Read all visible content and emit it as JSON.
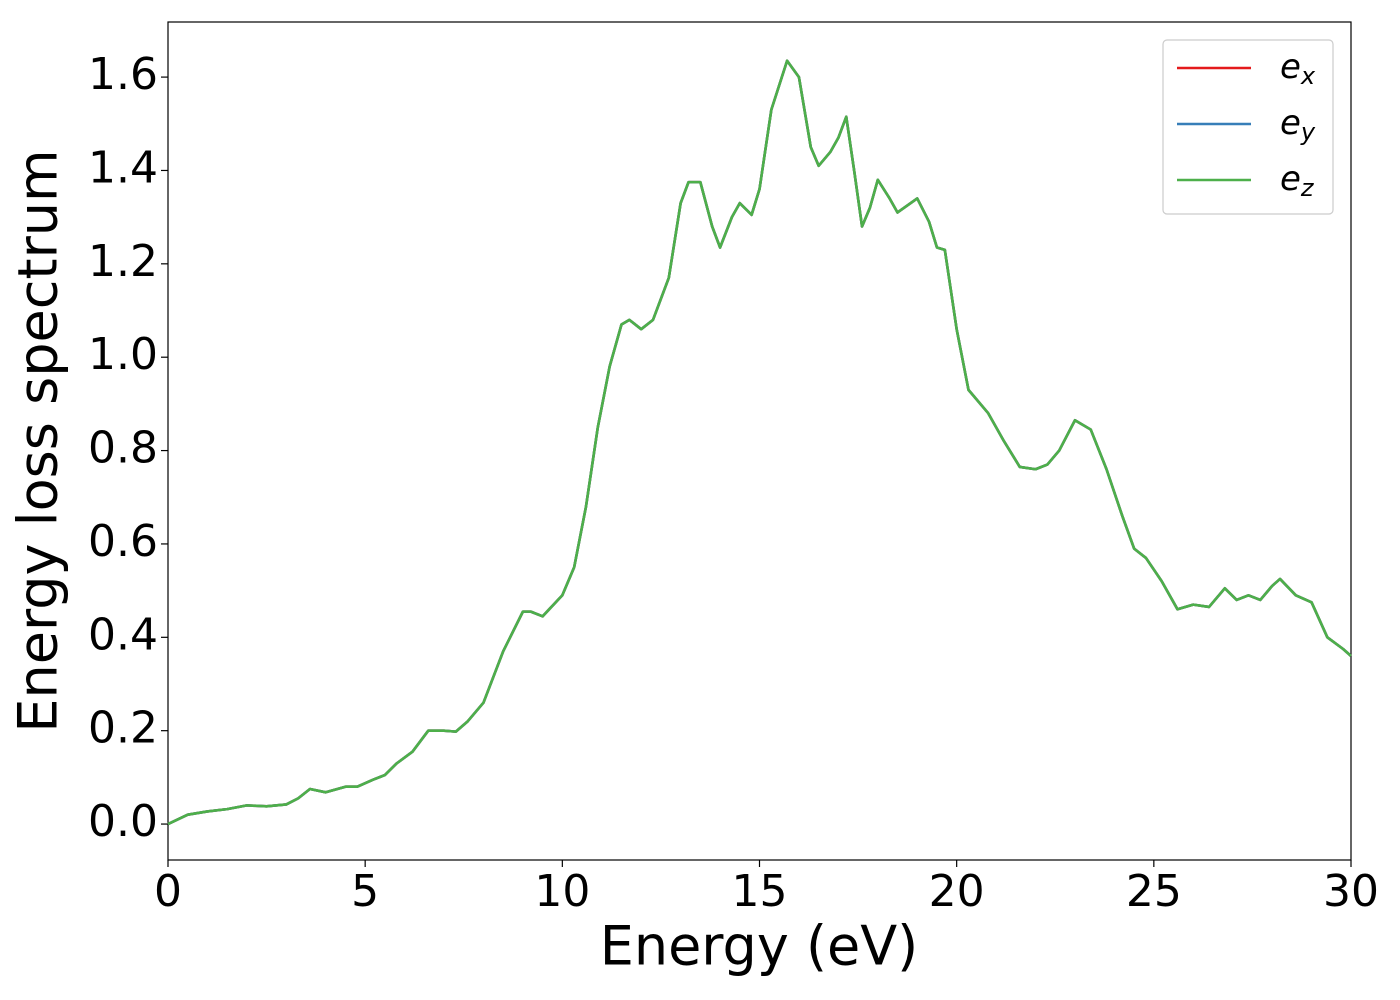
{
  "chart_data": {
    "type": "line",
    "xlabel": "Energy (eV)",
    "ylabel": "Energy loss spectrum",
    "x": [
      0,
      0.5,
      1,
      1.5,
      2,
      2.5,
      3,
      3.3,
      3.6,
      4,
      4.5,
      4.8,
      5.2,
      5.5,
      5.8,
      6.2,
      6.6,
      7,
      7.3,
      7.6,
      8,
      8.5,
      9,
      9.2,
      9.5,
      10,
      10.3,
      10.6,
      10.9,
      11.2,
      11.5,
      11.7,
      12,
      12.3,
      12.7,
      13,
      13.2,
      13.5,
      13.8,
      14,
      14.3,
      14.5,
      14.8,
      15,
      15.3,
      15.7,
      16,
      16.3,
      16.5,
      16.8,
      17,
      17.2,
      17.4,
      17.6,
      17.8,
      18,
      18.3,
      18.5,
      19,
      19.3,
      19.5,
      19.7,
      20,
      20.3,
      20.8,
      21.2,
      21.6,
      22,
      22.3,
      22.6,
      23,
      23.4,
      23.8,
      24.2,
      24.5,
      24.8,
      25.2,
      25.6,
      26,
      26.4,
      26.8,
      27.1,
      27.4,
      27.7,
      28,
      28.2,
      28.6,
      29,
      29.4,
      29.8,
      30
    ],
    "series": [
      {
        "name": "ex",
        "color": "#e41a1c",
        "values": [
          0,
          0.02,
          0.027,
          0.032,
          0.04,
          0.038,
          0.042,
          0.055,
          0.075,
          0.068,
          0.08,
          0.08,
          0.095,
          0.105,
          0.13,
          0.155,
          0.2,
          0.2,
          0.198,
          0.22,
          0.26,
          0.37,
          0.455,
          0.455,
          0.445,
          0.49,
          0.55,
          0.68,
          0.85,
          0.98,
          1.07,
          1.08,
          1.06,
          1.08,
          1.17,
          1.33,
          1.375,
          1.375,
          1.28,
          1.235,
          1.3,
          1.33,
          1.305,
          1.36,
          1.53,
          1.635,
          1.6,
          1.45,
          1.41,
          1.44,
          1.47,
          1.515,
          1.4,
          1.28,
          1.32,
          1.38,
          1.34,
          1.31,
          1.34,
          1.29,
          1.235,
          1.23,
          1.06,
          0.93,
          0.88,
          0.82,
          0.765,
          0.76,
          0.77,
          0.8,
          0.865,
          0.845,
          0.76,
          0.66,
          0.59,
          0.57,
          0.52,
          0.46,
          0.47,
          0.465,
          0.505,
          0.48,
          0.49,
          0.48,
          0.51,
          0.525,
          0.49,
          0.475,
          0.4,
          0.375,
          0.36
        ]
      },
      {
        "name": "ey",
        "color": "#377eb8",
        "values": [
          0,
          0.02,
          0.027,
          0.032,
          0.04,
          0.038,
          0.042,
          0.055,
          0.075,
          0.068,
          0.08,
          0.08,
          0.095,
          0.105,
          0.13,
          0.155,
          0.2,
          0.2,
          0.198,
          0.22,
          0.26,
          0.37,
          0.455,
          0.455,
          0.445,
          0.49,
          0.55,
          0.68,
          0.85,
          0.98,
          1.07,
          1.08,
          1.06,
          1.08,
          1.17,
          1.33,
          1.375,
          1.375,
          1.28,
          1.235,
          1.3,
          1.33,
          1.305,
          1.36,
          1.53,
          1.635,
          1.6,
          1.45,
          1.41,
          1.44,
          1.47,
          1.515,
          1.4,
          1.28,
          1.32,
          1.38,
          1.34,
          1.31,
          1.34,
          1.29,
          1.235,
          1.23,
          1.06,
          0.93,
          0.88,
          0.82,
          0.765,
          0.76,
          0.77,
          0.8,
          0.865,
          0.845,
          0.76,
          0.66,
          0.59,
          0.57,
          0.52,
          0.46,
          0.47,
          0.465,
          0.505,
          0.48,
          0.49,
          0.48,
          0.51,
          0.525,
          0.49,
          0.475,
          0.4,
          0.375,
          0.36
        ]
      },
      {
        "name": "ez",
        "color": "#4daf4a",
        "values": [
          0,
          0.02,
          0.027,
          0.032,
          0.04,
          0.038,
          0.042,
          0.055,
          0.075,
          0.068,
          0.08,
          0.08,
          0.095,
          0.105,
          0.13,
          0.155,
          0.2,
          0.2,
          0.198,
          0.22,
          0.26,
          0.37,
          0.455,
          0.455,
          0.445,
          0.49,
          0.55,
          0.68,
          0.85,
          0.98,
          1.07,
          1.08,
          1.06,
          1.08,
          1.17,
          1.33,
          1.375,
          1.375,
          1.28,
          1.235,
          1.3,
          1.33,
          1.305,
          1.36,
          1.53,
          1.635,
          1.6,
          1.45,
          1.41,
          1.44,
          1.47,
          1.515,
          1.4,
          1.28,
          1.32,
          1.38,
          1.34,
          1.31,
          1.34,
          1.29,
          1.235,
          1.23,
          1.06,
          0.93,
          0.88,
          0.82,
          0.765,
          0.76,
          0.77,
          0.8,
          0.865,
          0.845,
          0.76,
          0.66,
          0.59,
          0.57,
          0.52,
          0.46,
          0.47,
          0.465,
          0.505,
          0.48,
          0.49,
          0.48,
          0.51,
          0.525,
          0.49,
          0.475,
          0.4,
          0.375,
          0.36
        ]
      }
    ],
    "xlim": [
      0,
      30
    ],
    "xticks": [
      0,
      5,
      10,
      15,
      20,
      25,
      30
    ],
    "ylim": [
      -0.077,
      1.718
    ],
    "yticks": [
      {
        "value": 0,
        "label": "0.0"
      },
      0.2,
      0.4,
      0.6,
      0.8,
      {
        "value": 1,
        "label": "1.0"
      },
      1.2,
      1.4,
      1.6
    ],
    "legend": "upper right",
    "grid": false
  }
}
